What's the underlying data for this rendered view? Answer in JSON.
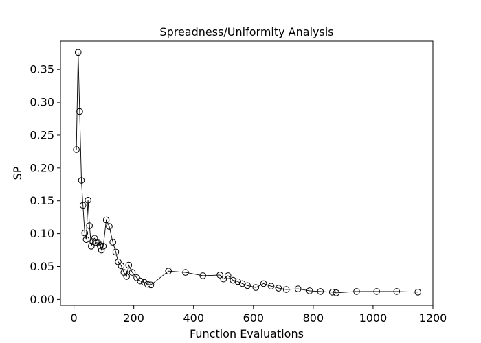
{
  "chart_data": {
    "type": "line",
    "title": "Spreadness/Uniformity Analysis",
    "xlabel": "Function Evaluations",
    "ylabel": "SP",
    "xlim": [
      -45,
      1200
    ],
    "ylim": [
      -0.009,
      0.393
    ],
    "xticks": [
      0,
      200,
      400,
      600,
      800,
      1000,
      1200
    ],
    "yticks": [
      0.0,
      0.05,
      0.1,
      0.15,
      0.2,
      0.25,
      0.3,
      0.35
    ],
    "xtick_labels": [
      "0",
      "200",
      "400",
      "600",
      "800",
      "1000",
      "1200"
    ],
    "ytick_labels": [
      "0.00",
      "0.05",
      "0.10",
      "0.15",
      "0.20",
      "0.25",
      "0.30",
      "0.35"
    ],
    "grid": false,
    "marker": "open-circle",
    "line_color": "#000000",
    "series": [
      {
        "x": [
          8,
          14,
          19,
          25,
          30,
          36,
          41,
          47,
          52,
          58,
          63,
          69,
          75,
          81,
          87,
          92,
          98,
          108,
          118,
          130,
          140,
          148,
          158,
          167,
          176,
          183,
          195,
          210,
          222,
          235,
          246,
          257,
          316,
          373,
          431,
          488,
          500,
          515,
          532,
          548,
          563,
          580,
          608,
          634,
          659,
          684,
          710,
          749,
          788,
          824,
          864,
          877,
          945,
          1012,
          1079,
          1150
        ],
        "y": [
          0.228,
          0.376,
          0.286,
          0.181,
          0.143,
          0.101,
          0.091,
          0.151,
          0.112,
          0.081,
          0.088,
          0.093,
          0.086,
          0.086,
          0.082,
          0.075,
          0.081,
          0.121,
          0.111,
          0.087,
          0.072,
          0.057,
          0.051,
          0.041,
          0.035,
          0.052,
          0.041,
          0.033,
          0.028,
          0.026,
          0.023,
          0.022,
          0.043,
          0.041,
          0.036,
          0.037,
          0.031,
          0.036,
          0.029,
          0.027,
          0.024,
          0.021,
          0.018,
          0.024,
          0.02,
          0.017,
          0.015,
          0.016,
          0.013,
          0.012,
          0.011,
          0.01,
          0.012,
          0.012,
          0.012,
          0.011
        ]
      }
    ]
  }
}
